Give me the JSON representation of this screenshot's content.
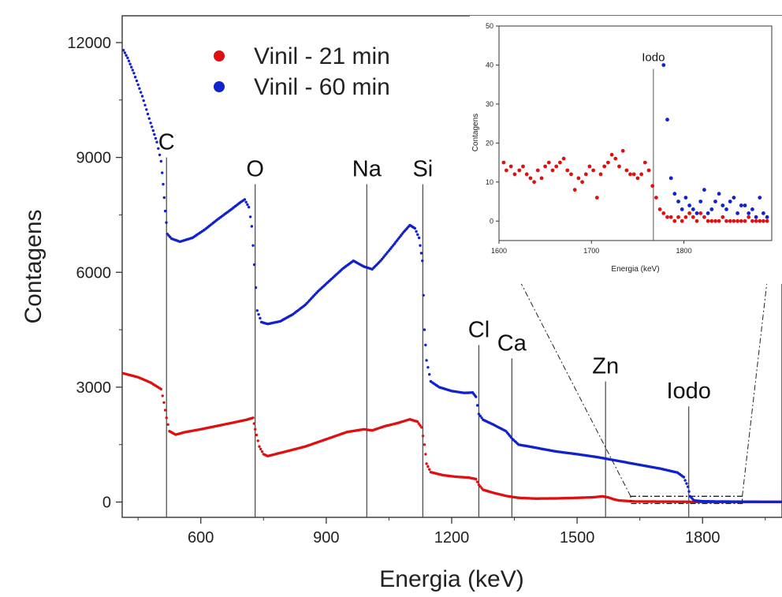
{
  "chart_data": [
    {
      "type": "scatter",
      "xlabel": "Energia (keV)",
      "ylabel": "Contagens",
      "xlim": [
        412,
        1990
      ],
      "ylim": [
        -400,
        12700
      ],
      "xticks": [
        600,
        900,
        1200,
        1500,
        1800
      ],
      "yticks": [
        0,
        3000,
        6000,
        9000,
        12000
      ],
      "legend_position": "top-left",
      "series": [
        {
          "name": "Vinil - 21 min",
          "color": "#dd1111",
          "points": [
            [
              415,
              3360
            ],
            [
              450,
              3260
            ],
            [
              480,
              3120
            ],
            [
              505,
              2950
            ],
            [
              512,
              2600
            ],
            [
              518,
              2200
            ],
            [
              525,
              1850
            ],
            [
              540,
              1760
            ],
            [
              560,
              1820
            ],
            [
              600,
              1900
            ],
            [
              640,
              1990
            ],
            [
              680,
              2080
            ],
            [
              710,
              2150
            ],
            [
              725,
              2200
            ],
            [
              730,
              1900
            ],
            [
              740,
              1450
            ],
            [
              750,
              1250
            ],
            [
              760,
              1200
            ],
            [
              800,
              1310
            ],
            [
              850,
              1450
            ],
            [
              900,
              1640
            ],
            [
              950,
              1830
            ],
            [
              990,
              1900
            ],
            [
              1010,
              1870
            ],
            [
              1040,
              1980
            ],
            [
              1070,
              2060
            ],
            [
              1100,
              2160
            ],
            [
              1118,
              2100
            ],
            [
              1128,
              1950
            ],
            [
              1135,
              1500
            ],
            [
              1140,
              1000
            ],
            [
              1150,
              780
            ],
            [
              1180,
              700
            ],
            [
              1210,
              660
            ],
            [
              1240,
              640
            ],
            [
              1258,
              600
            ],
            [
              1265,
              450
            ],
            [
              1275,
              320
            ],
            [
              1300,
              240
            ],
            [
              1330,
              160
            ],
            [
              1360,
              110
            ],
            [
              1400,
              90
            ],
            [
              1450,
              95
            ],
            [
              1500,
              110
            ],
            [
              1540,
              125
            ],
            [
              1560,
              150
            ],
            [
              1575,
              120
            ],
            [
              1585,
              80
            ],
            [
              1600,
              40
            ],
            [
              1640,
              15
            ],
            [
              1700,
              10
            ],
            [
              1760,
              8
            ],
            [
              1780,
              3
            ],
            [
              1850,
              2
            ],
            [
              1990,
              2
            ]
          ]
        },
        {
          "name": "Vinil - 60 min",
          "color": "#1122cc",
          "points": [
            [
              415,
              11800
            ],
            [
              425,
              11600
            ],
            [
              440,
              11200
            ],
            [
              460,
              10600
            ],
            [
              480,
              9900
            ],
            [
              495,
              9400
            ],
            [
              505,
              8900
            ],
            [
              510,
              8300
            ],
            [
              515,
              7600
            ],
            [
              520,
              7000
            ],
            [
              530,
              6880
            ],
            [
              550,
              6800
            ],
            [
              580,
              6900
            ],
            [
              610,
              7120
            ],
            [
              640,
              7380
            ],
            [
              670,
              7620
            ],
            [
              695,
              7830
            ],
            [
              705,
              7900
            ],
            [
              715,
              7700
            ],
            [
              722,
              7200
            ],
            [
              728,
              6200
            ],
            [
              735,
              5000
            ],
            [
              745,
              4700
            ],
            [
              760,
              4650
            ],
            [
              790,
              4720
            ],
            [
              820,
              4900
            ],
            [
              850,
              5150
            ],
            [
              880,
              5500
            ],
            [
              910,
              5800
            ],
            [
              940,
              6100
            ],
            [
              965,
              6300
            ],
            [
              990,
              6150
            ],
            [
              1010,
              6080
            ],
            [
              1030,
              6300
            ],
            [
              1060,
              6700
            ],
            [
              1085,
              7050
            ],
            [
              1100,
              7230
            ],
            [
              1112,
              7150
            ],
            [
              1122,
              6900
            ],
            [
              1130,
              6300
            ],
            [
              1135,
              4500
            ],
            [
              1140,
              3700
            ],
            [
              1150,
              3150
            ],
            [
              1170,
              3000
            ],
            [
              1200,
              2900
            ],
            [
              1230,
              2850
            ],
            [
              1250,
              2860
            ],
            [
              1258,
              2750
            ],
            [
              1265,
              2300
            ],
            [
              1275,
              2150
            ],
            [
              1300,
              2020
            ],
            [
              1330,
              1850
            ],
            [
              1345,
              1650
            ],
            [
              1360,
              1500
            ],
            [
              1400,
              1420
            ],
            [
              1450,
              1320
            ],
            [
              1500,
              1250
            ],
            [
              1550,
              1170
            ],
            [
              1600,
              1070
            ],
            [
              1650,
              970
            ],
            [
              1700,
              870
            ],
            [
              1740,
              770
            ],
            [
              1755,
              650
            ],
            [
              1765,
              400
            ],
            [
              1770,
              150
            ],
            [
              1780,
              40
            ],
            [
              1800,
              20
            ],
            [
              1850,
              12
            ],
            [
              1900,
              8
            ],
            [
              1990,
              5
            ]
          ]
        }
      ],
      "annotations": [
        {
          "text": "C",
          "x": 518
        },
        {
          "text": "O",
          "x": 730
        },
        {
          "text": "Na",
          "x": 997
        },
        {
          "text": "Si",
          "x": 1131
        },
        {
          "text": "Cl",
          "x": 1265
        },
        {
          "text": "Ca",
          "x": 1344
        },
        {
          "text": "Zn",
          "x": 1568
        },
        {
          "text": "Iodo",
          "x": 1767
        }
      ]
    },
    {
      "type": "scatter",
      "xlabel": "Energia (keV)",
      "ylabel": "Contagens",
      "xlim": [
        1600,
        1895
      ],
      "ylim": [
        -5,
        50
      ],
      "xticks": [
        1600,
        1700,
        1800
      ],
      "yticks": [
        0,
        10,
        20,
        30,
        40,
        50
      ],
      "series": [
        {
          "name": "Vinil - 21 min",
          "color": "#dd1111",
          "points": [
            [
              1605,
              15
            ],
            [
              1608,
              13
            ],
            [
              1613,
              14
            ],
            [
              1617,
              12
            ],
            [
              1622,
              13
            ],
            [
              1626,
              14
            ],
            [
              1630,
              12
            ],
            [
              1634,
              11
            ],
            [
              1638,
              10
            ],
            [
              1642,
              13
            ],
            [
              1646,
              11
            ],
            [
              1650,
              14
            ],
            [
              1654,
              15
            ],
            [
              1658,
              13
            ],
            [
              1662,
              14
            ],
            [
              1666,
              15
            ],
            [
              1670,
              16
            ],
            [
              1674,
              13
            ],
            [
              1678,
              12
            ],
            [
              1682,
              8
            ],
            [
              1686,
              11
            ],
            [
              1690,
              10
            ],
            [
              1694,
              12
            ],
            [
              1698,
              14
            ],
            [
              1702,
              13
            ],
            [
              1706,
              6
            ],
            [
              1710,
              12
            ],
            [
              1714,
              14
            ],
            [
              1718,
              15
            ],
            [
              1722,
              17
            ],
            [
              1726,
              16
            ],
            [
              1730,
              14
            ],
            [
              1734,
              18
            ],
            [
              1738,
              13
            ],
            [
              1742,
              12
            ],
            [
              1746,
              12
            ],
            [
              1750,
              11
            ],
            [
              1754,
              12
            ],
            [
              1758,
              15
            ],
            [
              1762,
              13
            ],
            [
              1766,
              9
            ],
            [
              1770,
              6
            ],
            [
              1774,
              3
            ],
            [
              1778,
              2
            ],
            [
              1782,
              1
            ],
            [
              1786,
              1
            ],
            [
              1790,
              0
            ],
            [
              1794,
              1
            ],
            [
              1798,
              0
            ],
            [
              1802,
              1
            ],
            [
              1806,
              2
            ],
            [
              1810,
              1
            ],
            [
              1814,
              0
            ],
            [
              1818,
              2
            ],
            [
              1822,
              1
            ],
            [
              1826,
              0
            ],
            [
              1830,
              0
            ],
            [
              1834,
              0
            ],
            [
              1838,
              0
            ],
            [
              1842,
              1
            ],
            [
              1846,
              0
            ],
            [
              1850,
              0
            ],
            [
              1854,
              0
            ],
            [
              1858,
              0
            ],
            [
              1862,
              0
            ],
            [
              1866,
              0
            ],
            [
              1870,
              1
            ],
            [
              1874,
              0
            ],
            [
              1878,
              0
            ],
            [
              1882,
              0
            ],
            [
              1886,
              0
            ],
            [
              1890,
              0
            ]
          ]
        },
        {
          "name": "Vinil - 60 min",
          "color": "#1122cc",
          "points": [
            [
              1778,
              40
            ],
            [
              1782,
              26
            ],
            [
              1786,
              11
            ],
            [
              1790,
              7
            ],
            [
              1794,
              5
            ],
            [
              1798,
              3
            ],
            [
              1802,
              6
            ],
            [
              1806,
              4
            ],
            [
              1810,
              3
            ],
            [
              1814,
              2
            ],
            [
              1818,
              5
            ],
            [
              1822,
              8
            ],
            [
              1826,
              2
            ],
            [
              1830,
              3
            ],
            [
              1834,
              5
            ],
            [
              1838,
              7
            ],
            [
              1842,
              4
            ],
            [
              1846,
              3
            ],
            [
              1850,
              5
            ],
            [
              1854,
              6
            ],
            [
              1858,
              2
            ],
            [
              1862,
              4
            ],
            [
              1866,
              4
            ],
            [
              1870,
              2
            ],
            [
              1874,
              3
            ],
            [
              1878,
              1
            ],
            [
              1882,
              6
            ],
            [
              1886,
              2
            ],
            [
              1890,
              1
            ]
          ]
        }
      ],
      "annotations": [
        {
          "text": "Iodo",
          "x": 1767
        }
      ]
    }
  ]
}
